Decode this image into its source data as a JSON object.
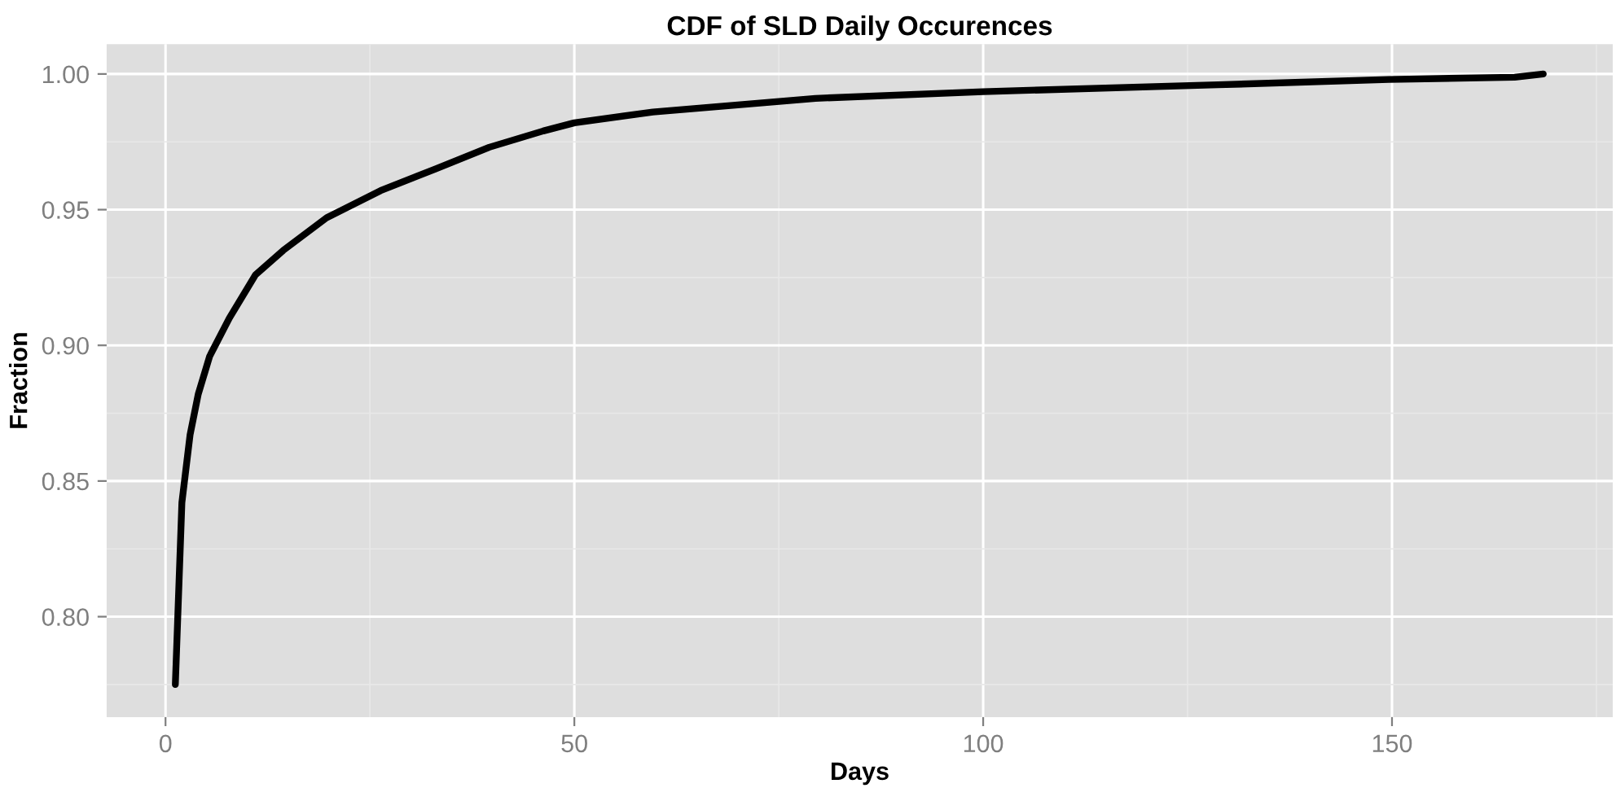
{
  "chart_data": {
    "type": "line",
    "title": "CDF of SLD Daily Occurences",
    "xlabel": "Days",
    "ylabel": "Fraction",
    "xlim": [
      -7.2,
      177
    ],
    "ylim": [
      0.763,
      1.011
    ],
    "xticks": [
      0,
      50,
      100,
      150
    ],
    "yticks": [
      {
        "value": 0.8,
        "label": "0.80"
      },
      {
        "value": 0.85,
        "label": "0.85"
      },
      {
        "value": 0.9,
        "label": "0.90"
      },
      {
        "value": 0.95,
        "label": "0.95"
      },
      {
        "value": 1.0,
        "label": "1.00"
      }
    ],
    "grid": true,
    "marker": "none",
    "line_style": "solid",
    "series": [
      {
        "color": "#000000",
        "x": [
          1.2,
          2,
          3,
          4,
          5.4,
          7.8,
          11,
          14.4,
          19.7,
          26.3,
          33,
          39.6,
          46.2,
          50,
          59.6,
          79.5,
          100,
          128.7,
          149.6,
          165,
          168.5
        ],
        "values": [
          0.775,
          0.842,
          0.867,
          0.882,
          0.896,
          0.91,
          0.926,
          0.935,
          0.947,
          0.957,
          0.965,
          0.973,
          0.979,
          0.982,
          0.986,
          0.991,
          0.9935,
          0.996,
          0.998,
          0.9988,
          1.0
        ]
      }
    ]
  }
}
